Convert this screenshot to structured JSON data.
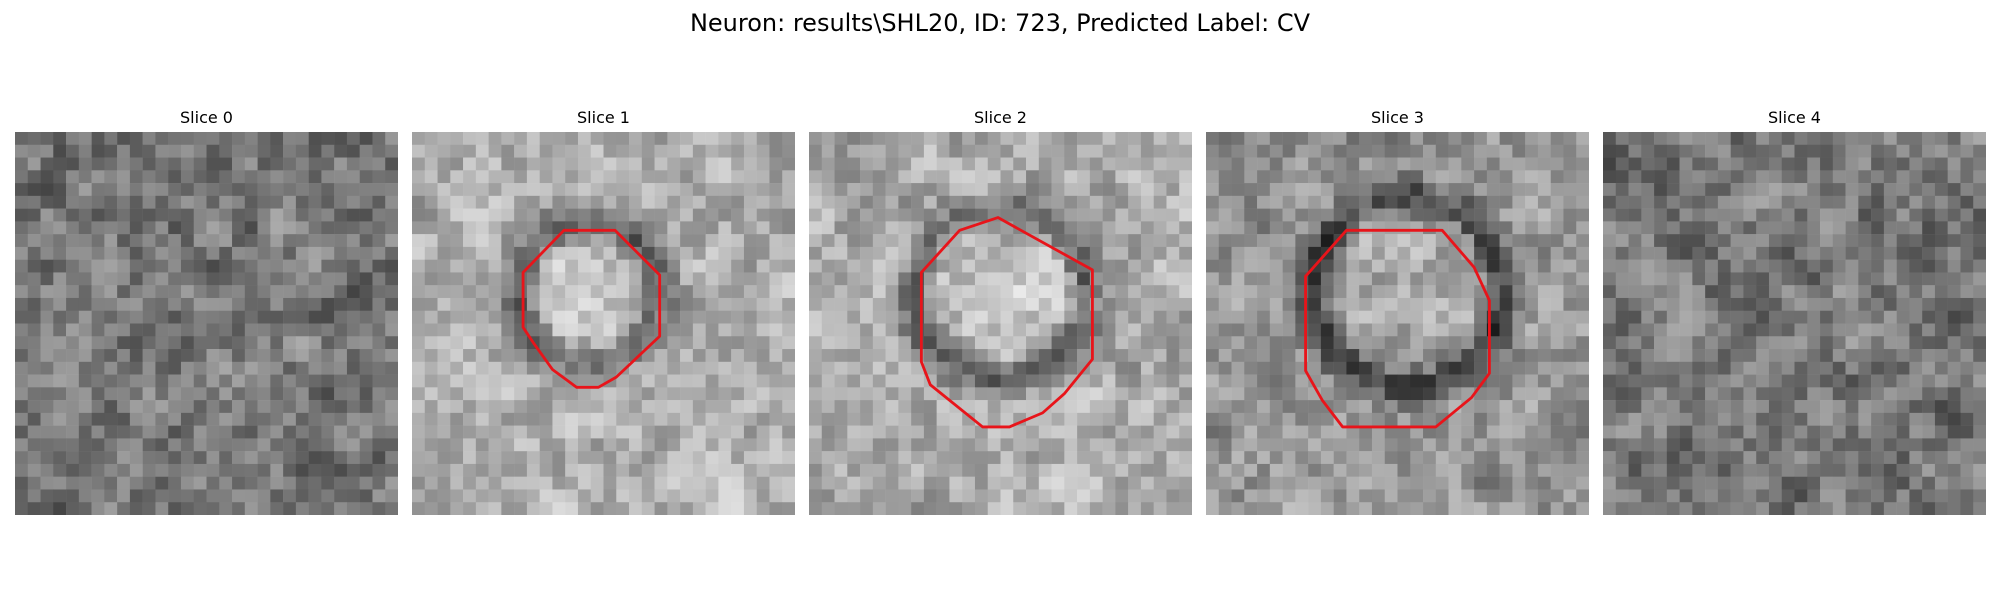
{
  "figure": {
    "title": "Neuron: results\\SHL20, ID: 723, Predicted Label: CV",
    "contour_color": "#e8141a"
  },
  "panels": [
    {
      "title": "Slice 0",
      "has_contour": false
    },
    {
      "title": "Slice 1",
      "has_contour": true
    },
    {
      "title": "Slice 2",
      "has_contour": true
    },
    {
      "title": "Slice 3",
      "has_contour": true
    },
    {
      "title": "Slice 4",
      "has_contour": false
    }
  ]
}
